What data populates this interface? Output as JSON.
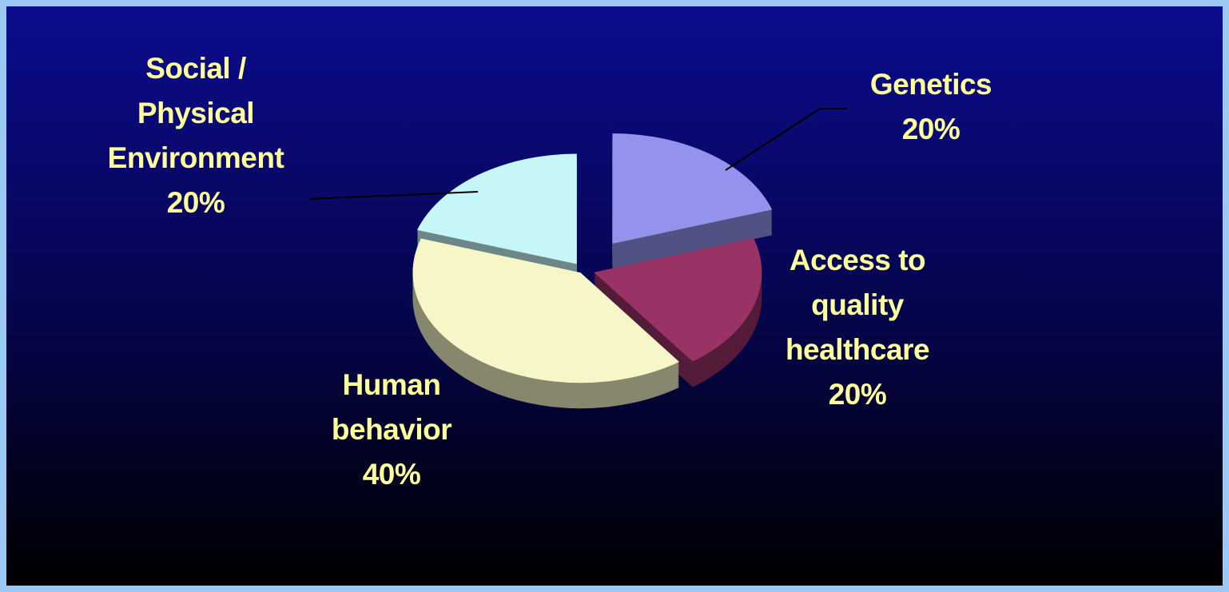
{
  "chart_data": {
    "type": "pie",
    "categories": [
      "Genetics",
      "Access to quality healthcare",
      "Human behavior",
      "Social / Physical Environment"
    ],
    "values": [
      20,
      20,
      40,
      20
    ],
    "value_labels": [
      "20%",
      "20%",
      "40%",
      "20%"
    ],
    "colors": [
      "#9393ee",
      "#993366",
      "#f6f6c8",
      "#c6f6f8"
    ]
  }
}
